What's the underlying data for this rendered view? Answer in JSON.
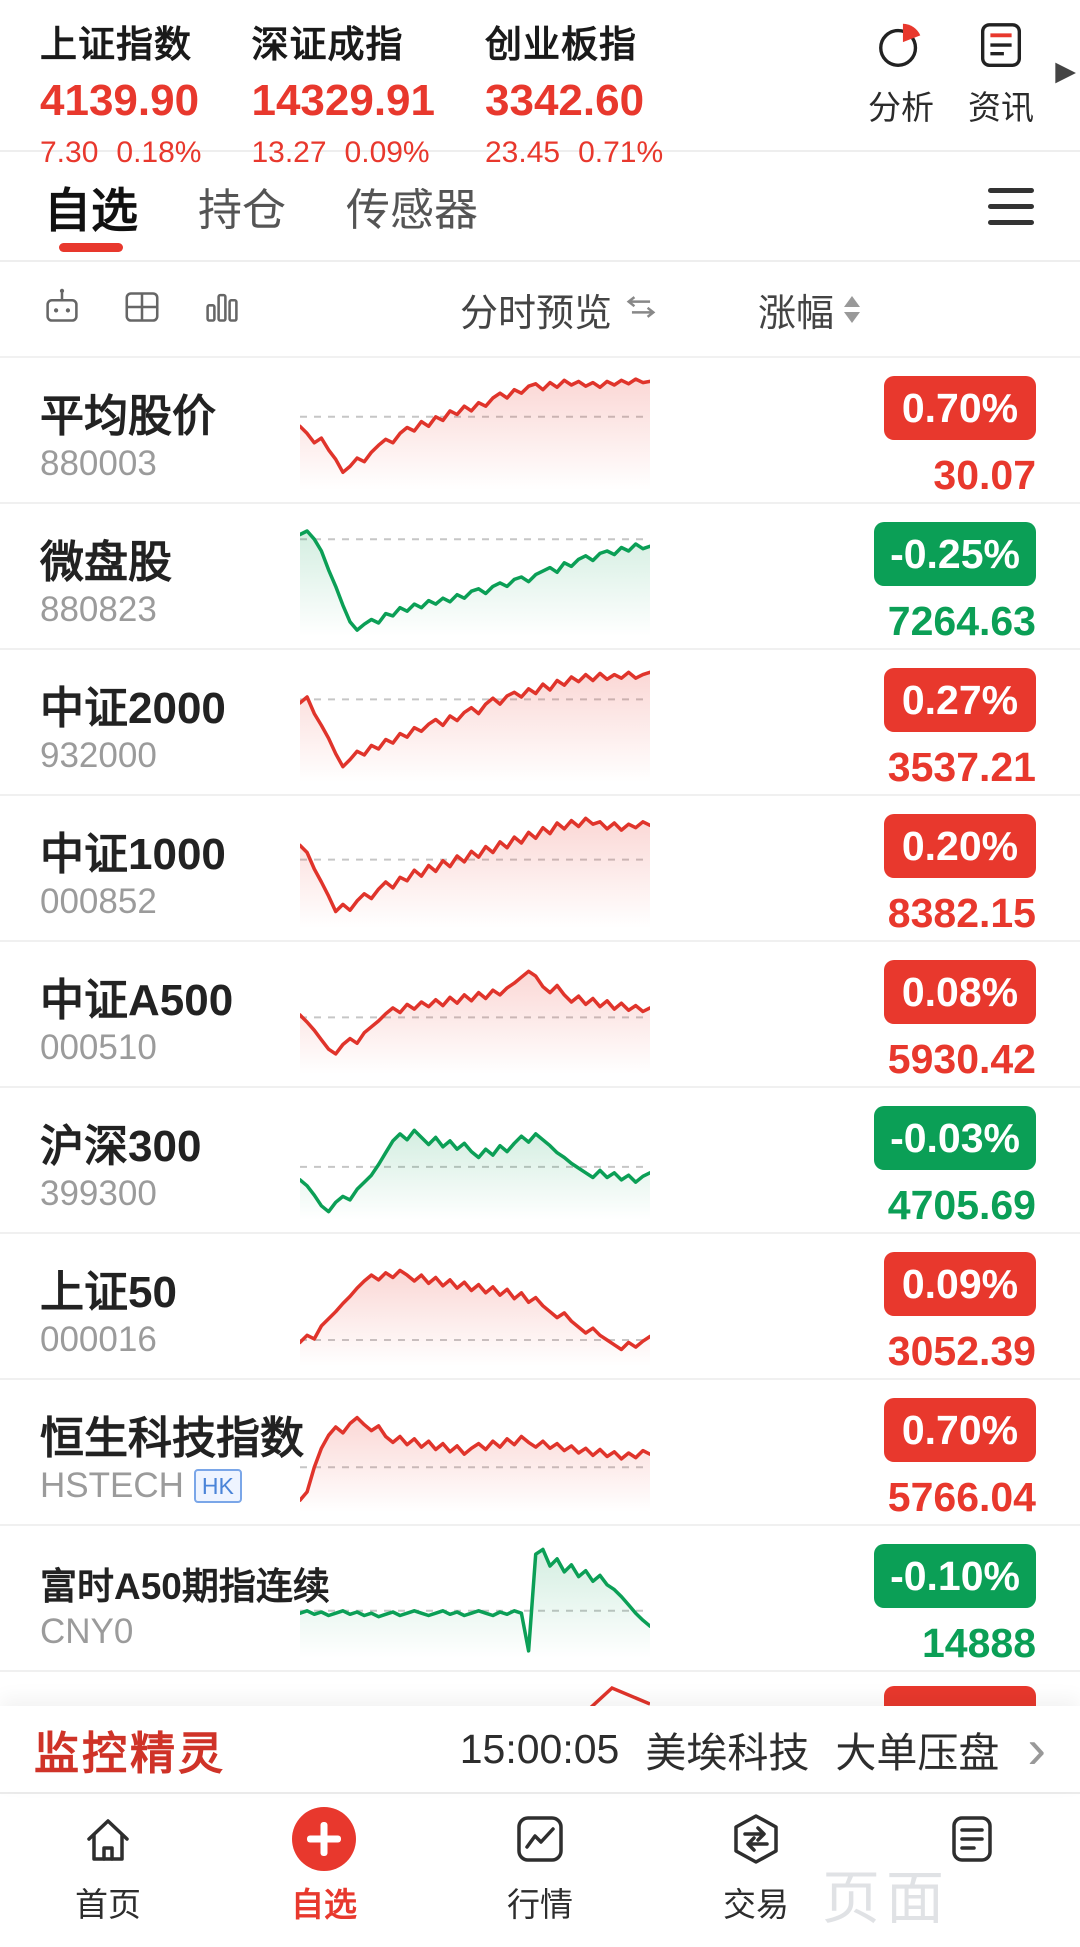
{
  "colors": {
    "up_red": "#e8382d",
    "down_green": "#0b9f56",
    "accent_red": "#e8382d",
    "hk_badge_blue": "#4a84d8"
  },
  "header": {
    "indices": [
      {
        "name": "上证指数",
        "value": "4139.90",
        "change": "7.30",
        "change_pct": "0.18%",
        "trend": "up"
      },
      {
        "name": "深证成指",
        "value": "14329.91",
        "change": "13.27",
        "change_pct": "0.09%",
        "trend": "up"
      },
      {
        "name": "创业板指",
        "value": "3342.60",
        "change": "23.45",
        "change_pct": "0.71%",
        "trend": "up"
      }
    ],
    "actions": [
      {
        "label": "分析",
        "icon": "pie-chart-icon"
      },
      {
        "label": "资讯",
        "icon": "news-icon"
      }
    ],
    "more_arrow": "▶"
  },
  "tabs": {
    "items": [
      {
        "label": "自选",
        "active": true
      },
      {
        "label": "持仓",
        "active": false
      },
      {
        "label": "传感器",
        "active": false
      }
    ]
  },
  "toolbar": {
    "preview_label": "分时预览",
    "sort_label": "涨幅"
  },
  "watchlist": [
    {
      "name": "平均股价",
      "code": "880003",
      "change_pct": "0.70%",
      "value": "30.07",
      "trend": "up",
      "spark": {
        "baseline": 0.38,
        "points": [
          0.46,
          0.52,
          0.6,
          0.56,
          0.66,
          0.74,
          0.85,
          0.8,
          0.73,
          0.76,
          0.68,
          0.62,
          0.57,
          0.6,
          0.52,
          0.47,
          0.5,
          0.42,
          0.46,
          0.38,
          0.41,
          0.33,
          0.36,
          0.29,
          0.33,
          0.26,
          0.29,
          0.22,
          0.18,
          0.22,
          0.15,
          0.18,
          0.12,
          0.1,
          0.15,
          0.09,
          0.13,
          0.07,
          0.11,
          0.08,
          0.12,
          0.09,
          0.13,
          0.08,
          0.11,
          0.07,
          0.1,
          0.06,
          0.09,
          0.08
        ]
      }
    },
    {
      "name": "微盘股",
      "code": "880823",
      "change_pct": "-0.25%",
      "value": "7264.63",
      "trend": "down",
      "spark": {
        "baseline": 0.18,
        "points": [
          0.14,
          0.11,
          0.18,
          0.28,
          0.44,
          0.58,
          0.74,
          0.88,
          0.95,
          0.9,
          0.86,
          0.89,
          0.81,
          0.83,
          0.76,
          0.79,
          0.73,
          0.76,
          0.7,
          0.73,
          0.68,
          0.71,
          0.65,
          0.68,
          0.62,
          0.6,
          0.64,
          0.58,
          0.55,
          0.58,
          0.52,
          0.5,
          0.54,
          0.48,
          0.45,
          0.42,
          0.46,
          0.38,
          0.41,
          0.35,
          0.32,
          0.36,
          0.3,
          0.28,
          0.31,
          0.25,
          0.28,
          0.22,
          0.26,
          0.24
        ]
      }
    },
    {
      "name": "中证2000",
      "code": "932000",
      "change_pct": "0.27%",
      "value": "3537.21",
      "trend": "up",
      "spark": {
        "baseline": 0.3,
        "points": [
          0.33,
          0.28,
          0.42,
          0.52,
          0.63,
          0.76,
          0.87,
          0.81,
          0.74,
          0.77,
          0.69,
          0.72,
          0.64,
          0.67,
          0.59,
          0.62,
          0.54,
          0.57,
          0.51,
          0.47,
          0.52,
          0.44,
          0.48,
          0.41,
          0.37,
          0.42,
          0.34,
          0.29,
          0.34,
          0.27,
          0.24,
          0.28,
          0.21,
          0.25,
          0.17,
          0.22,
          0.14,
          0.18,
          0.11,
          0.15,
          0.09,
          0.14,
          0.08,
          0.13,
          0.09,
          0.12,
          0.07,
          0.12,
          0.09,
          0.07
        ]
      }
    },
    {
      "name": "中证1000",
      "code": "000852",
      "change_pct": "0.20%",
      "value": "8382.15",
      "trend": "up",
      "spark": {
        "baseline": 0.42,
        "points": [
          0.3,
          0.36,
          0.5,
          0.61,
          0.73,
          0.86,
          0.8,
          0.85,
          0.77,
          0.71,
          0.75,
          0.67,
          0.61,
          0.66,
          0.57,
          0.6,
          0.51,
          0.56,
          0.47,
          0.52,
          0.43,
          0.48,
          0.39,
          0.44,
          0.35,
          0.4,
          0.31,
          0.36,
          0.27,
          0.32,
          0.23,
          0.28,
          0.19,
          0.24,
          0.15,
          0.2,
          0.11,
          0.16,
          0.09,
          0.14,
          0.07,
          0.12,
          0.1,
          0.16,
          0.11,
          0.17,
          0.12,
          0.15,
          0.1,
          0.13
        ]
      }
    },
    {
      "name": "中证A500",
      "code": "000510",
      "change_pct": "0.08%",
      "value": "5930.42",
      "trend": "up",
      "spark": {
        "baseline": 0.52,
        "points": [
          0.5,
          0.56,
          0.63,
          0.71,
          0.79,
          0.83,
          0.75,
          0.7,
          0.74,
          0.65,
          0.6,
          0.55,
          0.49,
          0.44,
          0.48,
          0.41,
          0.45,
          0.39,
          0.43,
          0.37,
          0.42,
          0.35,
          0.4,
          0.33,
          0.38,
          0.31,
          0.36,
          0.29,
          0.33,
          0.27,
          0.23,
          0.18,
          0.13,
          0.17,
          0.26,
          0.31,
          0.25,
          0.33,
          0.39,
          0.34,
          0.41,
          0.36,
          0.43,
          0.38,
          0.45,
          0.4,
          0.46,
          0.42,
          0.47,
          0.44
        ]
      }
    },
    {
      "name": "沪深300",
      "code": "399300",
      "change_pct": "-0.03%",
      "value": "4705.69",
      "trend": "down",
      "spark": {
        "baseline": 0.55,
        "points": [
          0.66,
          0.71,
          0.79,
          0.88,
          0.93,
          0.85,
          0.8,
          0.83,
          0.74,
          0.68,
          0.62,
          0.53,
          0.43,
          0.33,
          0.27,
          0.32,
          0.24,
          0.3,
          0.36,
          0.3,
          0.38,
          0.33,
          0.4,
          0.35,
          0.42,
          0.47,
          0.4,
          0.45,
          0.37,
          0.42,
          0.35,
          0.29,
          0.34,
          0.27,
          0.32,
          0.37,
          0.43,
          0.47,
          0.52,
          0.56,
          0.6,
          0.64,
          0.58,
          0.64,
          0.6,
          0.66,
          0.62,
          0.68,
          0.63,
          0.6
        ]
      }
    },
    {
      "name": "上证50",
      "code": "000016",
      "change_pct": "0.09%",
      "value": "3052.39",
      "trend": "up",
      "spark": {
        "baseline": 0.78,
        "points": [
          0.8,
          0.74,
          0.77,
          0.66,
          0.6,
          0.54,
          0.47,
          0.41,
          0.34,
          0.28,
          0.23,
          0.27,
          0.21,
          0.25,
          0.19,
          0.23,
          0.28,
          0.23,
          0.3,
          0.25,
          0.32,
          0.27,
          0.34,
          0.29,
          0.36,
          0.31,
          0.38,
          0.33,
          0.4,
          0.35,
          0.43,
          0.38,
          0.46,
          0.42,
          0.49,
          0.54,
          0.59,
          0.55,
          0.62,
          0.67,
          0.72,
          0.68,
          0.74,
          0.78,
          0.82,
          0.86,
          0.8,
          0.84,
          0.79,
          0.75
        ]
      }
    },
    {
      "name": "恒生科技指数",
      "code": "HSTECH",
      "code_badge": "HK",
      "change_pct": "0.70%",
      "value": "5766.04",
      "trend": "up",
      "spark": {
        "baseline": 0.62,
        "points": [
          0.9,
          0.83,
          0.62,
          0.46,
          0.35,
          0.28,
          0.33,
          0.25,
          0.2,
          0.26,
          0.31,
          0.27,
          0.36,
          0.41,
          0.36,
          0.43,
          0.38,
          0.45,
          0.4,
          0.47,
          0.42,
          0.49,
          0.44,
          0.51,
          0.46,
          0.42,
          0.47,
          0.4,
          0.45,
          0.38,
          0.43,
          0.36,
          0.41,
          0.45,
          0.4,
          0.46,
          0.42,
          0.48,
          0.44,
          0.5,
          0.46,
          0.52,
          0.47,
          0.53,
          0.49,
          0.55,
          0.5,
          0.54,
          0.48,
          0.51
        ]
      }
    },
    {
      "name": "富时A50期指连续",
      "code": "CNY0",
      "change_pct": "-0.10%",
      "value": "14888",
      "trend": "down",
      "spark": {
        "baseline": 0.6,
        "points": [
          0.62,
          0.6,
          0.63,
          0.61,
          0.64,
          0.62,
          0.6,
          0.63,
          0.61,
          0.64,
          0.62,
          0.65,
          0.63,
          0.61,
          0.64,
          0.62,
          0.6,
          0.62,
          0.64,
          0.62,
          0.6,
          0.63,
          0.61,
          0.64,
          0.62,
          0.6,
          0.62,
          0.64,
          0.61,
          0.63,
          0.6,
          0.62,
          0.94,
          0.12,
          0.08,
          0.22,
          0.16,
          0.27,
          0.21,
          0.31,
          0.26,
          0.35,
          0.3,
          0.38,
          0.42,
          0.48,
          0.55,
          0.62,
          0.68,
          0.73
        ]
      }
    }
  ],
  "banner": {
    "logo": "监控精灵",
    "time": "15:00:05",
    "stock": "美埃科技",
    "event": "大单压盘",
    "chevron": "›"
  },
  "bottom_nav": [
    {
      "label": "首页",
      "icon": "home-icon",
      "active": false
    },
    {
      "label": "自选",
      "icon": "plus-icon",
      "active": true
    },
    {
      "label": "行情",
      "icon": "market-chart-icon",
      "active": false
    },
    {
      "label": "交易",
      "icon": "trade-icon",
      "active": false
    },
    {
      "label": "",
      "icon": "news-icon",
      "active": false
    }
  ],
  "watermark": "页面"
}
